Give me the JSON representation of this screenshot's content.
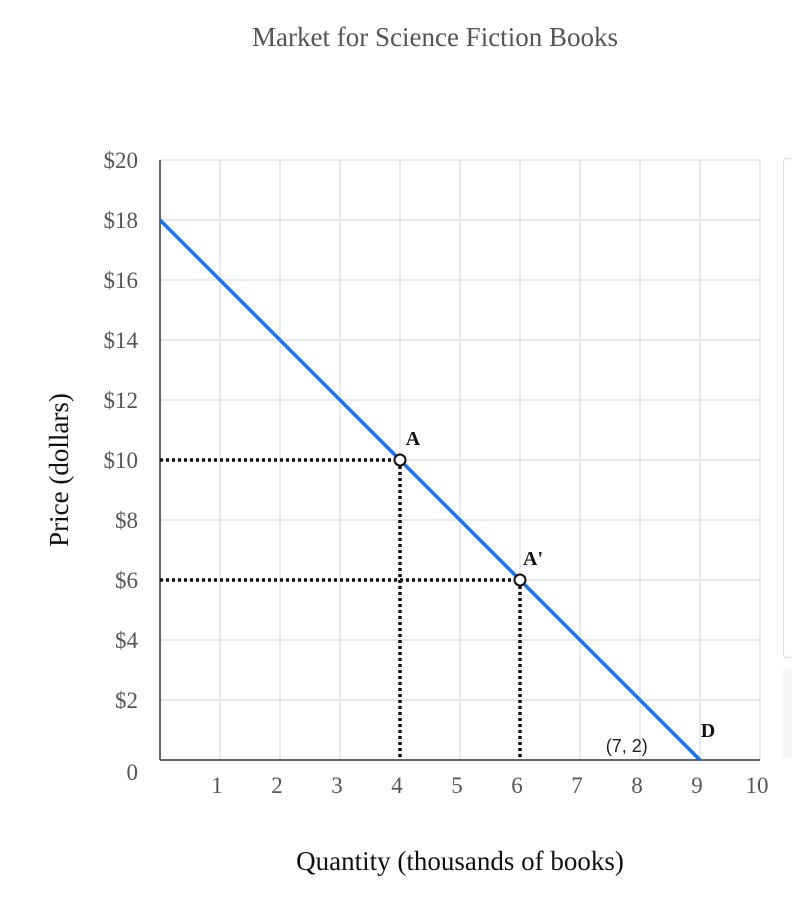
{
  "chart_data": {
    "type": "line",
    "title": "Market for Science Fiction Books",
    "xlabel": "Quantity (thousands of books)",
    "ylabel": "Price (dollars)",
    "xlim": [
      0,
      10
    ],
    "ylim": [
      0,
      20
    ],
    "x_ticks": [
      1,
      2,
      3,
      4,
      5,
      6,
      7,
      8,
      9,
      10
    ],
    "y_ticks": [
      2,
      4,
      6,
      8,
      10,
      12,
      14,
      16,
      18,
      20
    ],
    "origin_label": "0",
    "x_tick_labels": [
      "1",
      "2",
      "3",
      "4",
      "5",
      "6",
      "7",
      "8",
      "9",
      "10"
    ],
    "y_tick_labels": [
      "$2",
      "$4",
      "$6",
      "$8",
      "$10",
      "$12",
      "$14",
      "$16",
      "$18",
      "$20"
    ],
    "grid": true,
    "series": [
      {
        "name": "D",
        "color": "#1a73f0",
        "points": [
          [
            0,
            18
          ],
          [
            9,
            0
          ]
        ]
      }
    ],
    "points": [
      {
        "label": "A",
        "x": 4,
        "y": 10
      },
      {
        "label": "A'",
        "x": 6,
        "y": 6
      }
    ],
    "annotations": [
      {
        "text": "(7, 2)"
      }
    ]
  }
}
